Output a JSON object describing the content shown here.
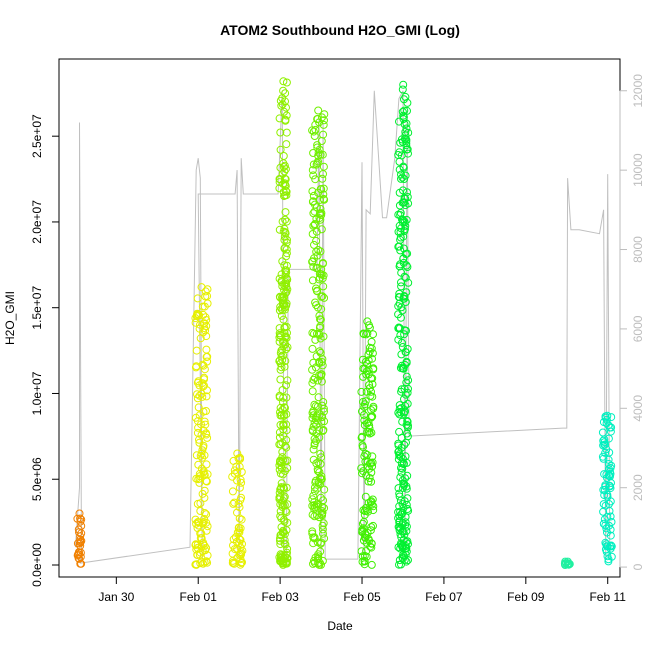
{
  "chart_data": {
    "type": "scatter",
    "title": "ATOM2 Southbound H2O_GMI (Log)",
    "xlabel": "Date",
    "ylabel": "H2O_GMI",
    "x_tick_labels": [
      "Jan 30",
      "Feb 01",
      "Feb 03",
      "Feb 05",
      "Feb 07",
      "Feb 09",
      "Feb 11"
    ],
    "x_tick_values": [
      0,
      2,
      4,
      6,
      8,
      10,
      12
    ],
    "xlim": [
      -1.4,
      12.3
    ],
    "y_tick_labels": [
      "0.0e+00",
      "5.0e+06",
      "1.0e+07",
      "1.5e+07",
      "2.0e+07",
      "2.5e+07"
    ],
    "y_tick_values": [
      0,
      5000000,
      10000000,
      15000000,
      20000000,
      25000000
    ],
    "ylim": [
      -700000,
      29500000
    ],
    "y2_tick_labels": [
      "0",
      "2000",
      "4000",
      "6000",
      "8000",
      "10000",
      "12000"
    ],
    "y2_tick_values": [
      0,
      2000,
      4000,
      6000,
      8000,
      10000,
      12000
    ],
    "y2lim": [
      -250,
      12800
    ],
    "grid": false,
    "clusters": [
      {
        "x_start": -0.95,
        "x_end": -0.85,
        "y_max": 3000000,
        "color": "#f08000"
      },
      {
        "x_start": 1.93,
        "x_end": 2.23,
        "y_max": 16200000,
        "color": "#e6f000"
      },
      {
        "x_start": 2.83,
        "x_end": 3.08,
        "y_max": 6500000,
        "color": "#e6f000"
      },
      {
        "x_start": 3.98,
        "x_end": 4.18,
        "y_max": 28200000,
        "color": "#90f000"
      },
      {
        "x_start": 4.78,
        "x_end": 5.08,
        "y_max": 26500000,
        "color": "#70f000"
      },
      {
        "x_start": 5.98,
        "x_end": 6.28,
        "y_max": 14200000,
        "color": "#40f000"
      },
      {
        "x_start": 6.88,
        "x_end": 7.13,
        "y_max": 28000000,
        "color": "#00f030"
      },
      {
        "x_start": 10.95,
        "x_end": 11.1,
        "y_max": 200000,
        "color": "#20f0a0"
      },
      {
        "x_start": 11.88,
        "x_end": 12.1,
        "y_max": 8700000,
        "color": "#00f0c0"
      }
    ],
    "altitude_series": {
      "name": "",
      "color": "#c0c0c0",
      "x": [
        -1.0,
        -0.9,
        -0.9,
        -0.85,
        -0.88,
        1.8,
        1.95,
        2.0,
        2.05,
        2.1,
        2.0,
        2.9,
        2.95,
        3.0,
        3.05,
        3.1,
        3.95,
        4.05,
        4.1,
        4.15,
        4.2,
        4.9,
        4.95,
        5.0,
        5.05,
        5.1,
        5.9,
        6.0,
        6.05,
        6.1,
        6.2,
        6.3,
        6.5,
        6.6,
        6.8,
        6.9,
        7.0,
        7.05,
        7.1,
        7.15,
        10.9,
        11.0,
        11.02,
        11.1,
        11.2,
        11.3,
        11.8,
        11.9,
        11.95,
        12.0,
        12.05,
        12.1
      ],
      "y": [
        500,
        2000,
        11200,
        300,
        100,
        500,
        10000,
        10300,
        9800,
        200,
        9400,
        9400,
        10000,
        200,
        10300,
        9400,
        9400,
        12000,
        200,
        200,
        7500,
        7500,
        11300,
        200,
        11200,
        200,
        200,
        10200,
        200,
        9000,
        8900,
        12000,
        8800,
        8800,
        10300,
        11800,
        12000,
        400,
        11500,
        3300,
        3500,
        3500,
        9800,
        8500,
        8500,
        8500,
        8400,
        9000,
        200,
        9900,
        200,
        200
      ]
    }
  }
}
